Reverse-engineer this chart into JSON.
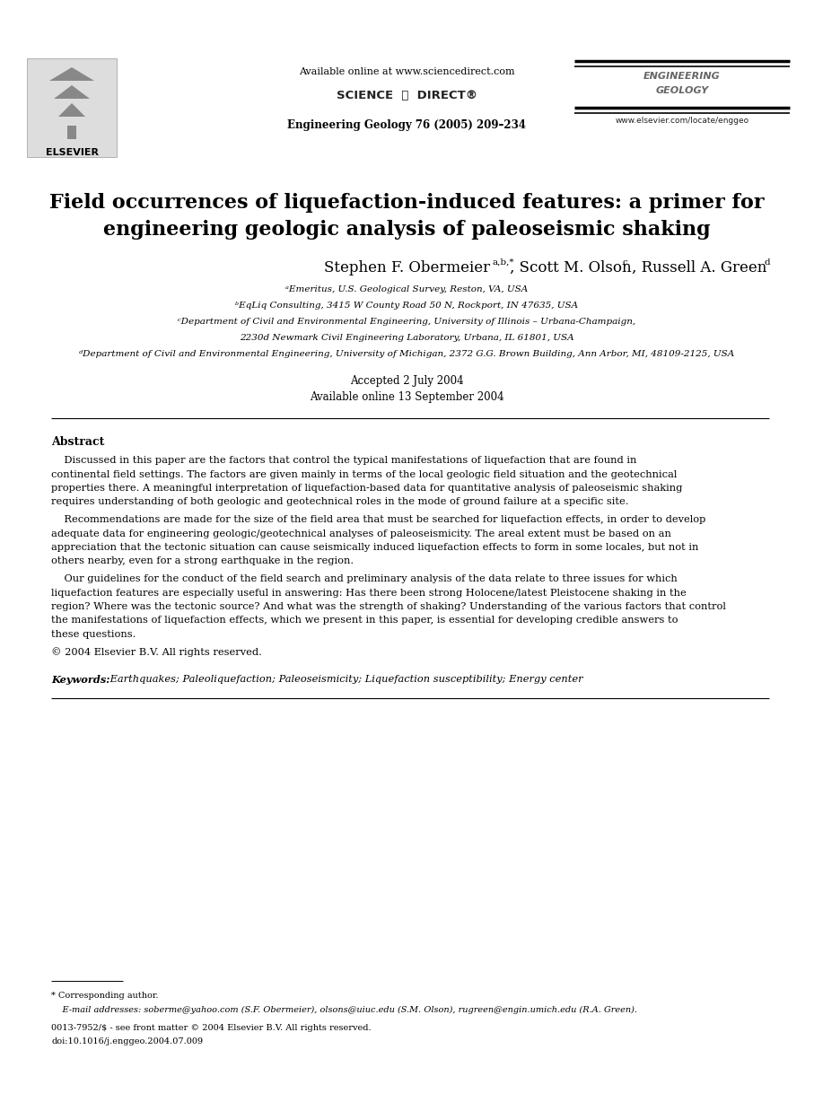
{
  "bg_color": "#ffffff",
  "text_color": "#000000",
  "page_width": 9.07,
  "page_height": 12.38,
  "dpi": 100,
  "header_available": "Available online at www.sciencedirect.com",
  "header_journal": "Engineering Geology 76 (2005) 209–234",
  "header_elsevier": "ELSEVIER",
  "header_website": "www.elsevier.com/locate/enggeo",
  "title_line1": "Field occurrences of liquefaction-induced features: a primer for",
  "title_line2": "engineering geologic analysis of paleoseismic shaking",
  "author_main": "Stephen F. Obermeier",
  "author_sup1": "a,b,*",
  "author_mid": ", Scott M. Olson",
  "author_sup2": "c",
  "author_end": ", Russell A. Green",
  "author_sup3": "d",
  "affiliations": [
    "ᵃEmeritus, U.S. Geological Survey, Reston, VA, USA",
    "ᵇEqLiq Consulting, 3415 W County Road 50 N, Rockport, IN 47635, USA",
    "ᶜDepartment of Civil and Environmental Engineering, University of Illinois – Urbana-Champaign,",
    "2230d Newmark Civil Engineering Laboratory, Urbana, IL 61801, USA",
    "ᵈDepartment of Civil and Environmental Engineering, University of Michigan, 2372 G.G. Brown Building, Ann Arbor, MI, 48109-2125, USA"
  ],
  "date1": "Accepted 2 July 2004",
  "date2": "Available online 13 September 2004",
  "abstract_head": "Abstract",
  "abstract_p1": "    Discussed in this paper are the factors that control the typical manifestations of liquefaction that are found in continental field settings. The factors are given mainly in terms of the local geologic field situation and the geotechnical properties there. A meaningful interpretation of liquefaction-based data for quantitative analysis of paleoseismic shaking requires understanding of both geologic and geotechnical roles in the mode of ground failure at a specific site.",
  "abstract_p2": "    Recommendations are made for the size of the field area that must be searched for liquefaction effects, in order to develop adequate data for engineering geologic/geotechnical analyses of paleoseismicity. The areal extent must be based on an appreciation that the tectonic situation can cause seismically induced liquefaction effects to form in some locales, but not in others nearby, even for a strong earthquake in the region.",
  "abstract_p3": "    Our guidelines for the conduct of the field search and preliminary analysis of the data relate to three issues for which liquefaction features are especially useful in answering: Has there been strong Holocene/latest Pleistocene shaking in the region? Where was the tectonic source? And what was the strength of shaking? Understanding of the various factors that control the manifestations of liquefaction effects, which we present in this paper, is essential for developing credible answers to these questions.",
  "abstract_copy": "© 2004 Elsevier B.V. All rights reserved.",
  "keywords_label": "Keywords:",
  "keywords_text": " Earthquakes; Paleoliquefaction; Paleoseismicity; Liquefaction susceptibility; Energy center",
  "fn0": "* Corresponding author.",
  "fn1": "    E-mail addresses: soberme@yahoo.com (S.F. Obermeier), olsons@uiuc.edu (S.M. Olson), rugreen@engin.umich.edu (R.A. Green).",
  "fn2": "0013-7952/$ - see front matter © 2004 Elsevier B.V. All rights reserved.",
  "fn3": "doi:10.1016/j.enggeo.2004.07.009"
}
